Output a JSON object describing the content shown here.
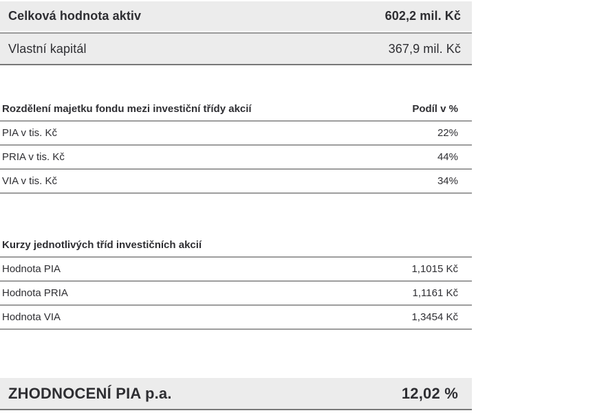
{
  "summary": {
    "rows": [
      {
        "label": "Celková hodnota aktiv",
        "value": "602,2 mil. Kč"
      },
      {
        "label": "Vlastní kapitál",
        "value": "367,9 mil. Kč"
      }
    ]
  },
  "allocation_table": {
    "title": "Rozdělení majetku fondu mezi investiční třídy akcií",
    "value_header": "Podíl v %",
    "rows": [
      {
        "label": "PIA v tis. Kč",
        "value": "22%"
      },
      {
        "label": "PRIA v tis. Kč",
        "value": "44%"
      },
      {
        "label": "VIA v tis. Kč",
        "value": "34%"
      }
    ]
  },
  "rates_table": {
    "title": "Kurzy jednotlivých tříd investičních akcií",
    "rows": [
      {
        "label": "Hodnota PIA",
        "value": "1,1015 Kč"
      },
      {
        "label": "Hodnota PRIA",
        "value": "1,1161 Kč"
      },
      {
        "label": "Hodnota VIA",
        "value": "1,3454 Kč"
      }
    ]
  },
  "performance": {
    "label": "ZHODNOCENÍ PIA p.a.",
    "value": "12,02 %"
  },
  "colors": {
    "row_background": "#ececec",
    "separator_line": "#9d9d9d",
    "dark_line": "#787878",
    "text": "#2e2e32"
  }
}
